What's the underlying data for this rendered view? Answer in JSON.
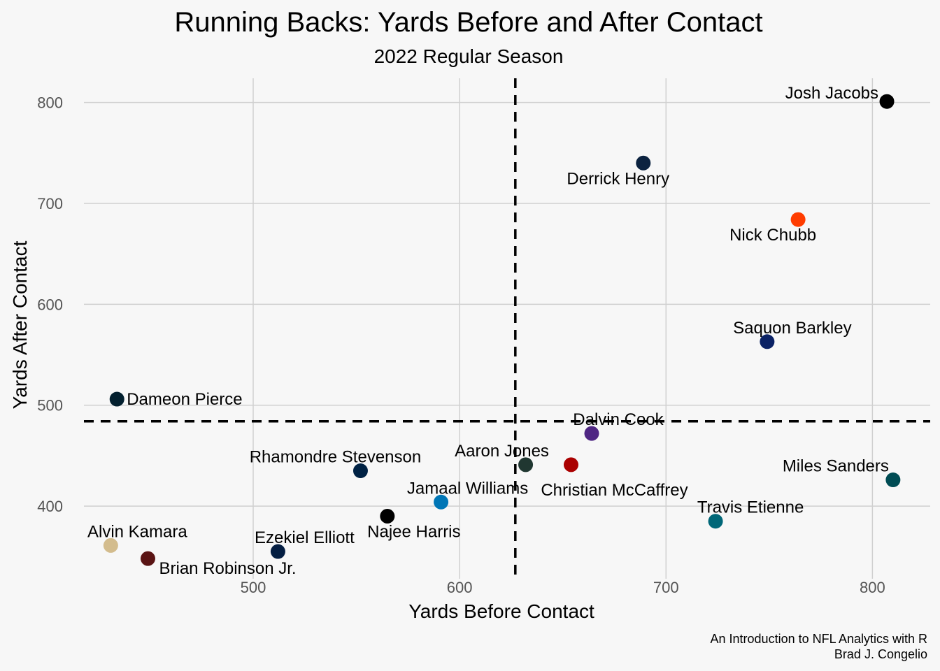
{
  "chart_data": {
    "type": "scatter",
    "title": "Running Backs: Yards Before and After Contact",
    "subtitle": "2022 Regular Season",
    "xlabel": "Yards Before Contact",
    "ylabel": "Yards After Contact",
    "xlim": [
      418,
      828
    ],
    "ylim": [
      328,
      824
    ],
    "xticks": [
      500,
      600,
      700,
      800
    ],
    "yticks": [
      400,
      500,
      600,
      700,
      800
    ],
    "grid": true,
    "reference_lines": {
      "x": 627,
      "y": 484
    },
    "caption": [
      "An Introduction to NFL Analytics with R",
      "Brad J. Congelio"
    ],
    "points": [
      {
        "name": "Josh Jacobs",
        "x": 807,
        "y": 801,
        "color": "#000000"
      },
      {
        "name": "Derrick Henry",
        "x": 689,
        "y": 740,
        "color": "#0c2340"
      },
      {
        "name": "Nick Chubb",
        "x": 764,
        "y": 684,
        "color": "#ff3c00"
      },
      {
        "name": "Saquon Barkley",
        "x": 749,
        "y": 563,
        "color": "#0b2265"
      },
      {
        "name": "Dameon Pierce",
        "x": 434,
        "y": 506,
        "color": "#03202f"
      },
      {
        "name": "Dalvin Cook",
        "x": 664,
        "y": 472,
        "color": "#4f2683"
      },
      {
        "name": "Aaron Jones",
        "x": 632,
        "y": 441,
        "color": "#203731"
      },
      {
        "name": "Christian McCaffrey",
        "x": 654,
        "y": 441,
        "color": "#aa0000"
      },
      {
        "name": "Rhamondre Stevenson",
        "x": 552,
        "y": 435,
        "color": "#002244"
      },
      {
        "name": "Miles Sanders",
        "x": 810,
        "y": 426,
        "color": "#004c54"
      },
      {
        "name": "Jamaal Williams",
        "x": 591,
        "y": 404,
        "color": "#0076b6"
      },
      {
        "name": "Najee Harris",
        "x": 565,
        "y": 390,
        "color": "#000000"
      },
      {
        "name": "Travis Etienne",
        "x": 724,
        "y": 385,
        "color": "#006778"
      },
      {
        "name": "Alvin Kamara",
        "x": 431,
        "y": 361,
        "color": "#d3bc8d"
      },
      {
        "name": "Ezekiel Elliott",
        "x": 512,
        "y": 355,
        "color": "#041e42"
      },
      {
        "name": "Brian Robinson Jr.",
        "x": 449,
        "y": 348,
        "color": "#5a1414"
      }
    ]
  }
}
